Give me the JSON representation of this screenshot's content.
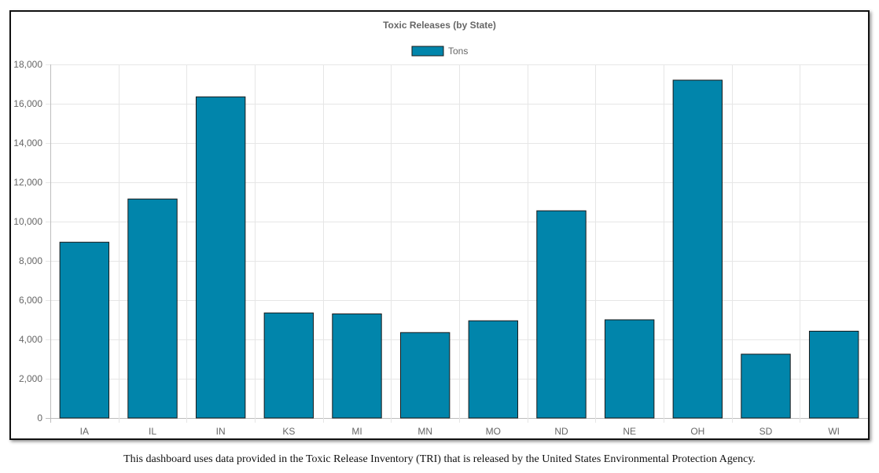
{
  "chart_data": {
    "type": "bar",
    "title": "Toxic Releases (by State)",
    "categories": [
      "IA",
      "IL",
      "IN",
      "KS",
      "MI",
      "MN",
      "MO",
      "ND",
      "NE",
      "OH",
      "SD",
      "WI"
    ],
    "series": [
      {
        "name": "Tons",
        "values": [
          8950,
          11150,
          16350,
          5350,
          5300,
          4350,
          4950,
          10550,
          5000,
          17200,
          3250,
          4420
        ],
        "color": "#0185ab",
        "border_color": "#1a1a1a"
      }
    ],
    "ylim": [
      0,
      18000
    ],
    "y_ticks": [
      0,
      2000,
      4000,
      6000,
      8000,
      10000,
      12000,
      14000,
      16000,
      18000
    ],
    "y_tick_labels": [
      "0",
      "2,000",
      "4,000",
      "6,000",
      "8,000",
      "10,000",
      "12,000",
      "14,000",
      "16,000",
      "18,000"
    ],
    "grid": true,
    "legend_position": "top"
  },
  "footer": {
    "text": "This dashboard uses data provided in the Toxic Release Inventory (TRI) that is released by the United States Environmental Protection Agency."
  }
}
